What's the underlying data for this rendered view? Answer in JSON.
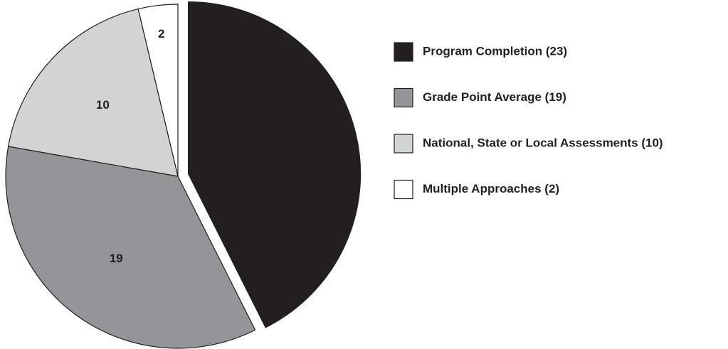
{
  "chart_data": {
    "type": "pie",
    "categories": [
      "Program Completion (23)",
      "Grade Point Average (19)",
      "National, State or Local Assessments (10)",
      "Multiple Approaches (2)"
    ],
    "values": [
      23,
      19,
      10,
      2
    ],
    "colors": [
      "#231f20",
      "#939598",
      "#d1d3d4",
      "#ffffff"
    ],
    "exploded": [
      true,
      false,
      false,
      false
    ],
    "legend": "right"
  }
}
